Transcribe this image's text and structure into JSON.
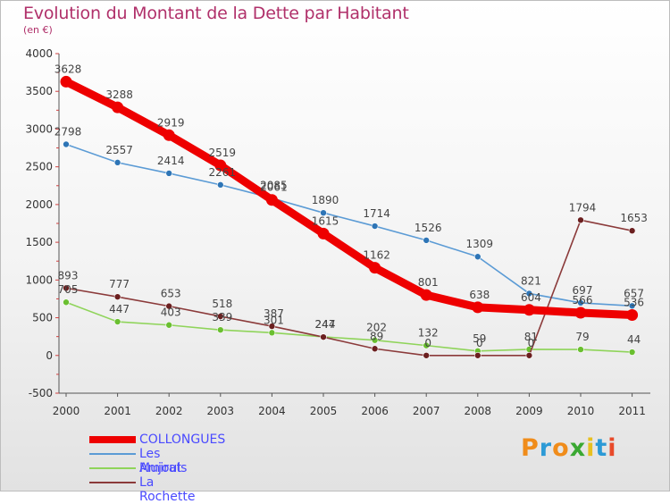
{
  "header": {
    "title": "Evolution du Montant de la Dette par Habitant",
    "unit": "(en €)"
  },
  "chart_data": {
    "type": "line",
    "title": "Evolution du Montant de la Dette par Habitant",
    "ylabel": "(en €)",
    "xlabel": "",
    "categories": [
      "2000",
      "2001",
      "2002",
      "2003",
      "2004",
      "2005",
      "2006",
      "2007",
      "2008",
      "2009",
      "2010",
      "2011"
    ],
    "ylim": [
      -500,
      4000
    ],
    "yticks": [
      -500,
      0,
      500,
      1000,
      1500,
      2000,
      2500,
      3000,
      3500,
      4000
    ],
    "series": [
      {
        "name": "Les Mujouls",
        "color": "#5b9bd5",
        "marker": "#2e75b6",
        "values": [
          2798,
          2557,
          2414,
          2261,
          2085,
          1890,
          1714,
          1526,
          1309,
          821,
          697,
          657
        ]
      },
      {
        "name": "Amirat",
        "color": "#8fd45a",
        "marker": "#6abf30",
        "values": [
          705,
          447,
          403,
          339,
          301,
          247,
          202,
          132,
          59,
          81,
          79,
          44
        ]
      },
      {
        "name": "La Rochette",
        "color": "#8b3a3a",
        "marker": "#6b1f1f",
        "values": [
          893,
          777,
          653,
          518,
          387,
          244,
          89,
          0,
          0,
          0,
          1794,
          1653
        ]
      },
      {
        "name": "COLLONGUES",
        "color": "#ee0000",
        "marker": "#ee0000",
        "values": [
          3628,
          3288,
          2919,
          2519,
          2061,
          1615,
          1162,
          801,
          638,
          604,
          566,
          536
        ]
      }
    ],
    "legend": [
      "COLLONGUES",
      "Les Mujouls",
      "Amirat",
      "La Rochette"
    ],
    "legend_position": "bottom-left",
    "grid": false
  },
  "legend": {
    "items": [
      {
        "label": "COLLONGUES",
        "color": "#ee0000",
        "text_color": "#4a4aff"
      },
      {
        "label": "Les Mujouls",
        "color": "#5b9bd5",
        "text_color": "#4a4aff"
      },
      {
        "label": "Amirat",
        "color": "#8fd45a",
        "text_color": "#4a4aff"
      },
      {
        "label": "La Rochette",
        "color": "#8b3a3a",
        "text_color": "#4a4aff"
      }
    ]
  },
  "logo": {
    "text": "Proxiti",
    "letters": [
      "P",
      "r",
      "o",
      "x",
      "i",
      "t",
      "i"
    ],
    "colors": [
      "#f08c1a",
      "#2c9ad6",
      "#f08c1a",
      "#3aa832",
      "#e8c020",
      "#2c9ad6",
      "#e84a2a"
    ]
  }
}
